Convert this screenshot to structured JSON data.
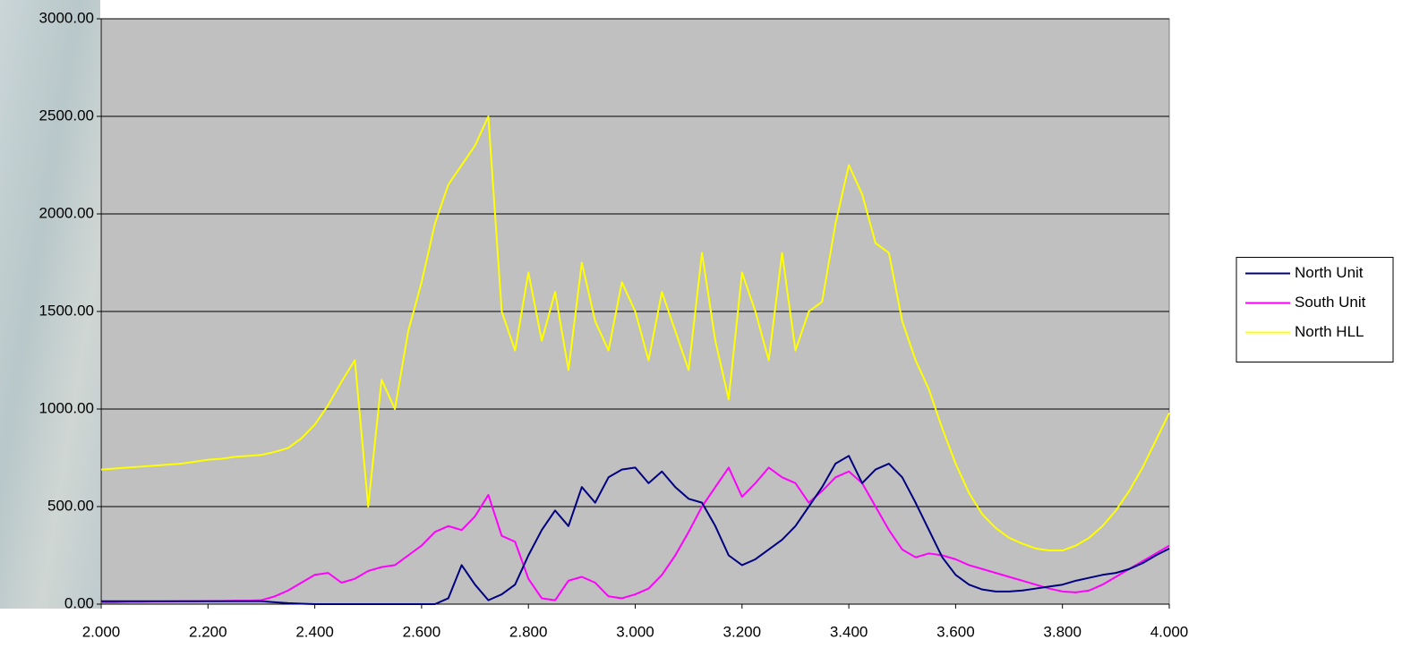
{
  "chart_data": {
    "type": "line",
    "x": [
      2,
      2.025,
      2.05,
      2.075,
      2.1,
      2.125,
      2.15,
      2.175,
      2.2,
      2.225,
      2.25,
      2.275,
      2.3,
      2.325,
      2.35,
      2.375,
      2.4,
      2.425,
      2.45,
      2.475,
      2.5,
      2.525,
      2.55,
      2.575,
      2.6,
      2.625,
      2.65,
      2.675,
      2.7,
      2.725,
      2.75,
      2.775,
      2.8,
      2.825,
      2.85,
      2.875,
      2.9,
      2.925,
      2.95,
      2.975,
      3,
      3.025,
      3.05,
      3.075,
      3.1,
      3.125,
      3.15,
      3.175,
      3.2,
      3.225,
      3.25,
      3.275,
      3.3,
      3.325,
      3.35,
      3.375,
      3.4,
      3.425,
      3.45,
      3.475,
      3.5,
      3.525,
      3.55,
      3.575,
      3.6,
      3.625,
      3.65,
      3.675,
      3.7,
      3.725,
      3.75,
      3.775,
      3.8,
      3.825,
      3.85,
      3.875,
      3.9,
      3.925,
      3.95,
      3.975,
      4
    ],
    "series": [
      {
        "name": "North Unit",
        "color": "#000080",
        "values": [
          15,
          15,
          15,
          15,
          15,
          15,
          15,
          15,
          15,
          15,
          15,
          15,
          15,
          10,
          5,
          2,
          0,
          0,
          0,
          0,
          0,
          0,
          0,
          0,
          0,
          0,
          30,
          200,
          100,
          20,
          50,
          100,
          250,
          380,
          480,
          400,
          600,
          520,
          650,
          690,
          700,
          620,
          680,
          600,
          540,
          520,
          400,
          250,
          200,
          230,
          280,
          330,
          400,
          500,
          600,
          720,
          760,
          620,
          690,
          720,
          650,
          520,
          380,
          240,
          150,
          100,
          75,
          65,
          65,
          70,
          80,
          90,
          100,
          120,
          135,
          150,
          160,
          180,
          210,
          250,
          285
        ]
      },
      {
        "name": "South Unit",
        "color": "#ff00ff",
        "values": [
          10,
          10,
          12,
          12,
          14,
          14,
          15,
          15,
          16,
          16,
          18,
          18,
          20,
          40,
          70,
          110,
          150,
          160,
          110,
          130,
          170,
          190,
          200,
          250,
          300,
          370,
          400,
          380,
          450,
          560,
          350,
          320,
          130,
          30,
          20,
          120,
          140,
          110,
          40,
          30,
          50,
          80,
          150,
          250,
          370,
          500,
          600,
          700,
          550,
          620,
          700,
          650,
          620,
          520,
          580,
          650,
          680,
          620,
          500,
          380,
          280,
          240,
          260,
          250,
          230,
          200,
          180,
          160,
          140,
          120,
          100,
          80,
          65,
          60,
          70,
          100,
          140,
          180,
          220,
          260,
          300
        ]
      },
      {
        "name": "North HLL",
        "color": "#ffff00",
        "values": [
          690,
          695,
          700,
          705,
          710,
          715,
          720,
          730,
          740,
          745,
          755,
          760,
          765,
          780,
          800,
          850,
          920,
          1020,
          1140,
          1250,
          500,
          1150,
          1000,
          1400,
          1650,
          1950,
          2150,
          2250,
          2350,
          2500,
          1500,
          1300,
          1700,
          1350,
          1600,
          1200,
          1750,
          1450,
          1300,
          1650,
          1500,
          1250,
          1600,
          1400,
          1200,
          1800,
          1350,
          1050,
          1700,
          1500,
          1250,
          1800,
          1300,
          1500,
          1550,
          1950,
          2250,
          2100,
          1850,
          1800,
          1450,
          1250,
          1100,
          900,
          720,
          570,
          460,
          390,
          340,
          310,
          285,
          275,
          275,
          300,
          340,
          400,
          480,
          580,
          700,
          840,
          980
        ]
      }
    ],
    "xlim": [
      2,
      4
    ],
    "xticks": [
      {
        "value": 2,
        "label": "2.000"
      },
      {
        "value": 2.2,
        "label": "2.200"
      },
      {
        "value": 2.4,
        "label": "2.400"
      },
      {
        "value": 2.6,
        "label": "2.600"
      },
      {
        "value": 2.8,
        "label": "2.800"
      },
      {
        "value": 3,
        "label": "3.000"
      },
      {
        "value": 3.2,
        "label": "3.200"
      },
      {
        "value": 3.4,
        "label": "3.400"
      },
      {
        "value": 3.6,
        "label": "3.600"
      },
      {
        "value": 3.8,
        "label": "3.800"
      },
      {
        "value": 4,
        "label": "4.000"
      }
    ],
    "ylim": [
      0,
      3000
    ],
    "yticks": [
      {
        "value": 0,
        "label": "0.00"
      },
      {
        "value": 500,
        "label": "500.00"
      },
      {
        "value": 1000,
        "label": "1000.00"
      },
      {
        "value": 1500,
        "label": "1500.00"
      },
      {
        "value": 2000,
        "label": "2000.00"
      },
      {
        "value": 2500,
        "label": "2500.00"
      },
      {
        "value": 3000,
        "label": "3000.00"
      }
    ],
    "grid": true,
    "legend": "right",
    "plot_background": "#c0c0c0"
  }
}
